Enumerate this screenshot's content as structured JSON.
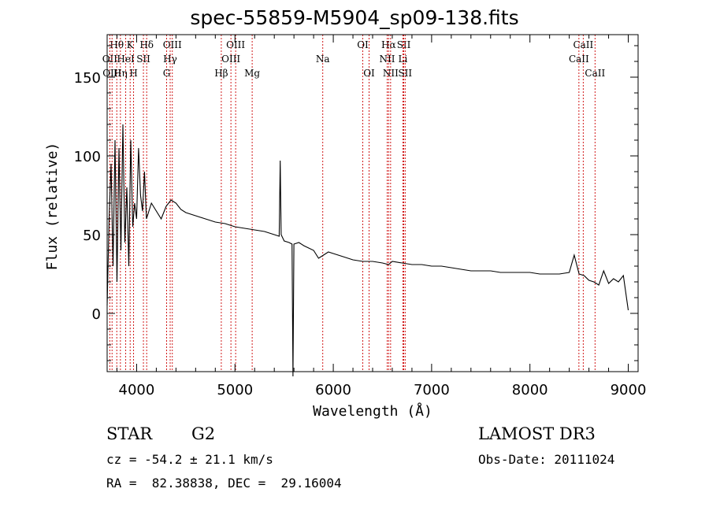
{
  "chart_data": {
    "type": "line",
    "title": "spec-55859-M5904_sp09-138.fits",
    "xlabel": "Wavelength (Å)",
    "ylabel": "Flux (relative)",
    "xlim": [
      3700,
      9100
    ],
    "ylim": [
      -37,
      177
    ],
    "xticks": [
      4000,
      5000,
      6000,
      7000,
      8000,
      9000
    ],
    "yticks": [
      0,
      50,
      100,
      150
    ],
    "grid": false,
    "series": [
      {
        "name": "spectrum",
        "x": [
          3700,
          3720,
          3740,
          3760,
          3780,
          3800,
          3820,
          3840,
          3860,
          3880,
          3900,
          3920,
          3940,
          3960,
          3980,
          4000,
          4020,
          4040,
          4060,
          4080,
          4100,
          4150,
          4200,
          4250,
          4300,
          4350,
          4400,
          4450,
          4500,
          4600,
          4700,
          4800,
          4900,
          5000,
          5100,
          5200,
          5300,
          5400,
          5450,
          5460,
          5470,
          5500,
          5550,
          5580,
          5590,
          5600,
          5650,
          5700,
          5800,
          5850,
          5900,
          5950,
          6000,
          6100,
          6200,
          6300,
          6400,
          6500,
          6563,
          6600,
          6700,
          6800,
          6900,
          7000,
          7100,
          7200,
          7300,
          7400,
          7500,
          7600,
          7700,
          7800,
          7900,
          8000,
          8100,
          8200,
          8300,
          8400,
          8450,
          8500,
          8550,
          8600,
          8650,
          8700,
          8750,
          8800,
          8850,
          8900,
          8950,
          9000
        ],
        "y": [
          5,
          60,
          95,
          30,
          110,
          20,
          105,
          40,
          120,
          45,
          80,
          30,
          110,
          55,
          70,
          60,
          105,
          75,
          65,
          90,
          60,
          70,
          65,
          60,
          68,
          72,
          70,
          66,
          64,
          62,
          60,
          58,
          57,
          55,
          54,
          53,
          52,
          50,
          49,
          97,
          50,
          46,
          45,
          44,
          -40,
          44,
          45,
          43,
          40,
          35,
          37,
          39,
          38,
          36,
          34,
          33,
          33,
          32,
          31,
          33,
          32,
          31,
          31,
          30,
          30,
          29,
          28,
          27,
          27,
          27,
          26,
          26,
          26,
          26,
          25,
          25,
          25,
          26,
          37,
          25,
          24,
          21,
          20,
          18,
          27,
          19,
          22,
          20,
          24,
          2
        ]
      }
    ],
    "line_color": "#000000",
    "marker_color": "#cc0000",
    "markers": [
      {
        "label": "Hθ",
        "x": 3798,
        "row": 0
      },
      {
        "label": "OII",
        "x": 3727,
        "row": 1
      },
      {
        "label": "OIII",
        "x": 3750,
        "row": 2
      },
      {
        "label": "K",
        "x": 3934,
        "row": 0
      },
      {
        "label": "HeI",
        "x": 3889,
        "row": 1
      },
      {
        "label": "Hη",
        "x": 3835,
        "row": 2
      },
      {
        "label": "SII",
        "x": 4069,
        "row": 1
      },
      {
        "label": "H",
        "x": 3969,
        "row": 2
      },
      {
        "label": "Hδ",
        "x": 4102,
        "row": 0
      },
      {
        "label": "OIII",
        "x": 4363,
        "row": 0
      },
      {
        "label": "Hγ",
        "x": 4341,
        "row": 1
      },
      {
        "label": "G",
        "x": 4305,
        "row": 2
      },
      {
        "label": "Hβ",
        "x": 4861,
        "row": 2
      },
      {
        "label": "OIII",
        "x": 5007,
        "row": 0
      },
      {
        "label": "OIII",
        "x": 4959,
        "row": 1
      },
      {
        "label": "Mg",
        "x": 5175,
        "row": 2
      },
      {
        "label": "Na",
        "x": 5893,
        "row": 1
      },
      {
        "label": "OI",
        "x": 6300,
        "row": 0
      },
      {
        "label": "OI",
        "x": 6364,
        "row": 2
      },
      {
        "label": "Hα",
        "x": 6563,
        "row": 0
      },
      {
        "label": "NII",
        "x": 6548,
        "row": 1
      },
      {
        "label": "NII",
        "x": 6583,
        "row": 2
      },
      {
        "label": "SII",
        "x": 6717,
        "row": 0
      },
      {
        "label": "Li",
        "x": 6708,
        "row": 1
      },
      {
        "label": "SII",
        "x": 6731,
        "row": 2
      },
      {
        "label": "CaII",
        "x": 8542,
        "row": 0
      },
      {
        "label": "CaII",
        "x": 8498,
        "row": 1
      },
      {
        "label": "CaII",
        "x": 8662,
        "row": 2
      }
    ]
  },
  "info": {
    "object_class": "STAR",
    "subclass": "G2",
    "survey": "LAMOST DR3",
    "cz": "cz = -54.2 ± 21.1 km/s",
    "obs_date": "Obs-Date: 20111024",
    "radec": "RA =  82.38838, DEC =  29.16004"
  }
}
